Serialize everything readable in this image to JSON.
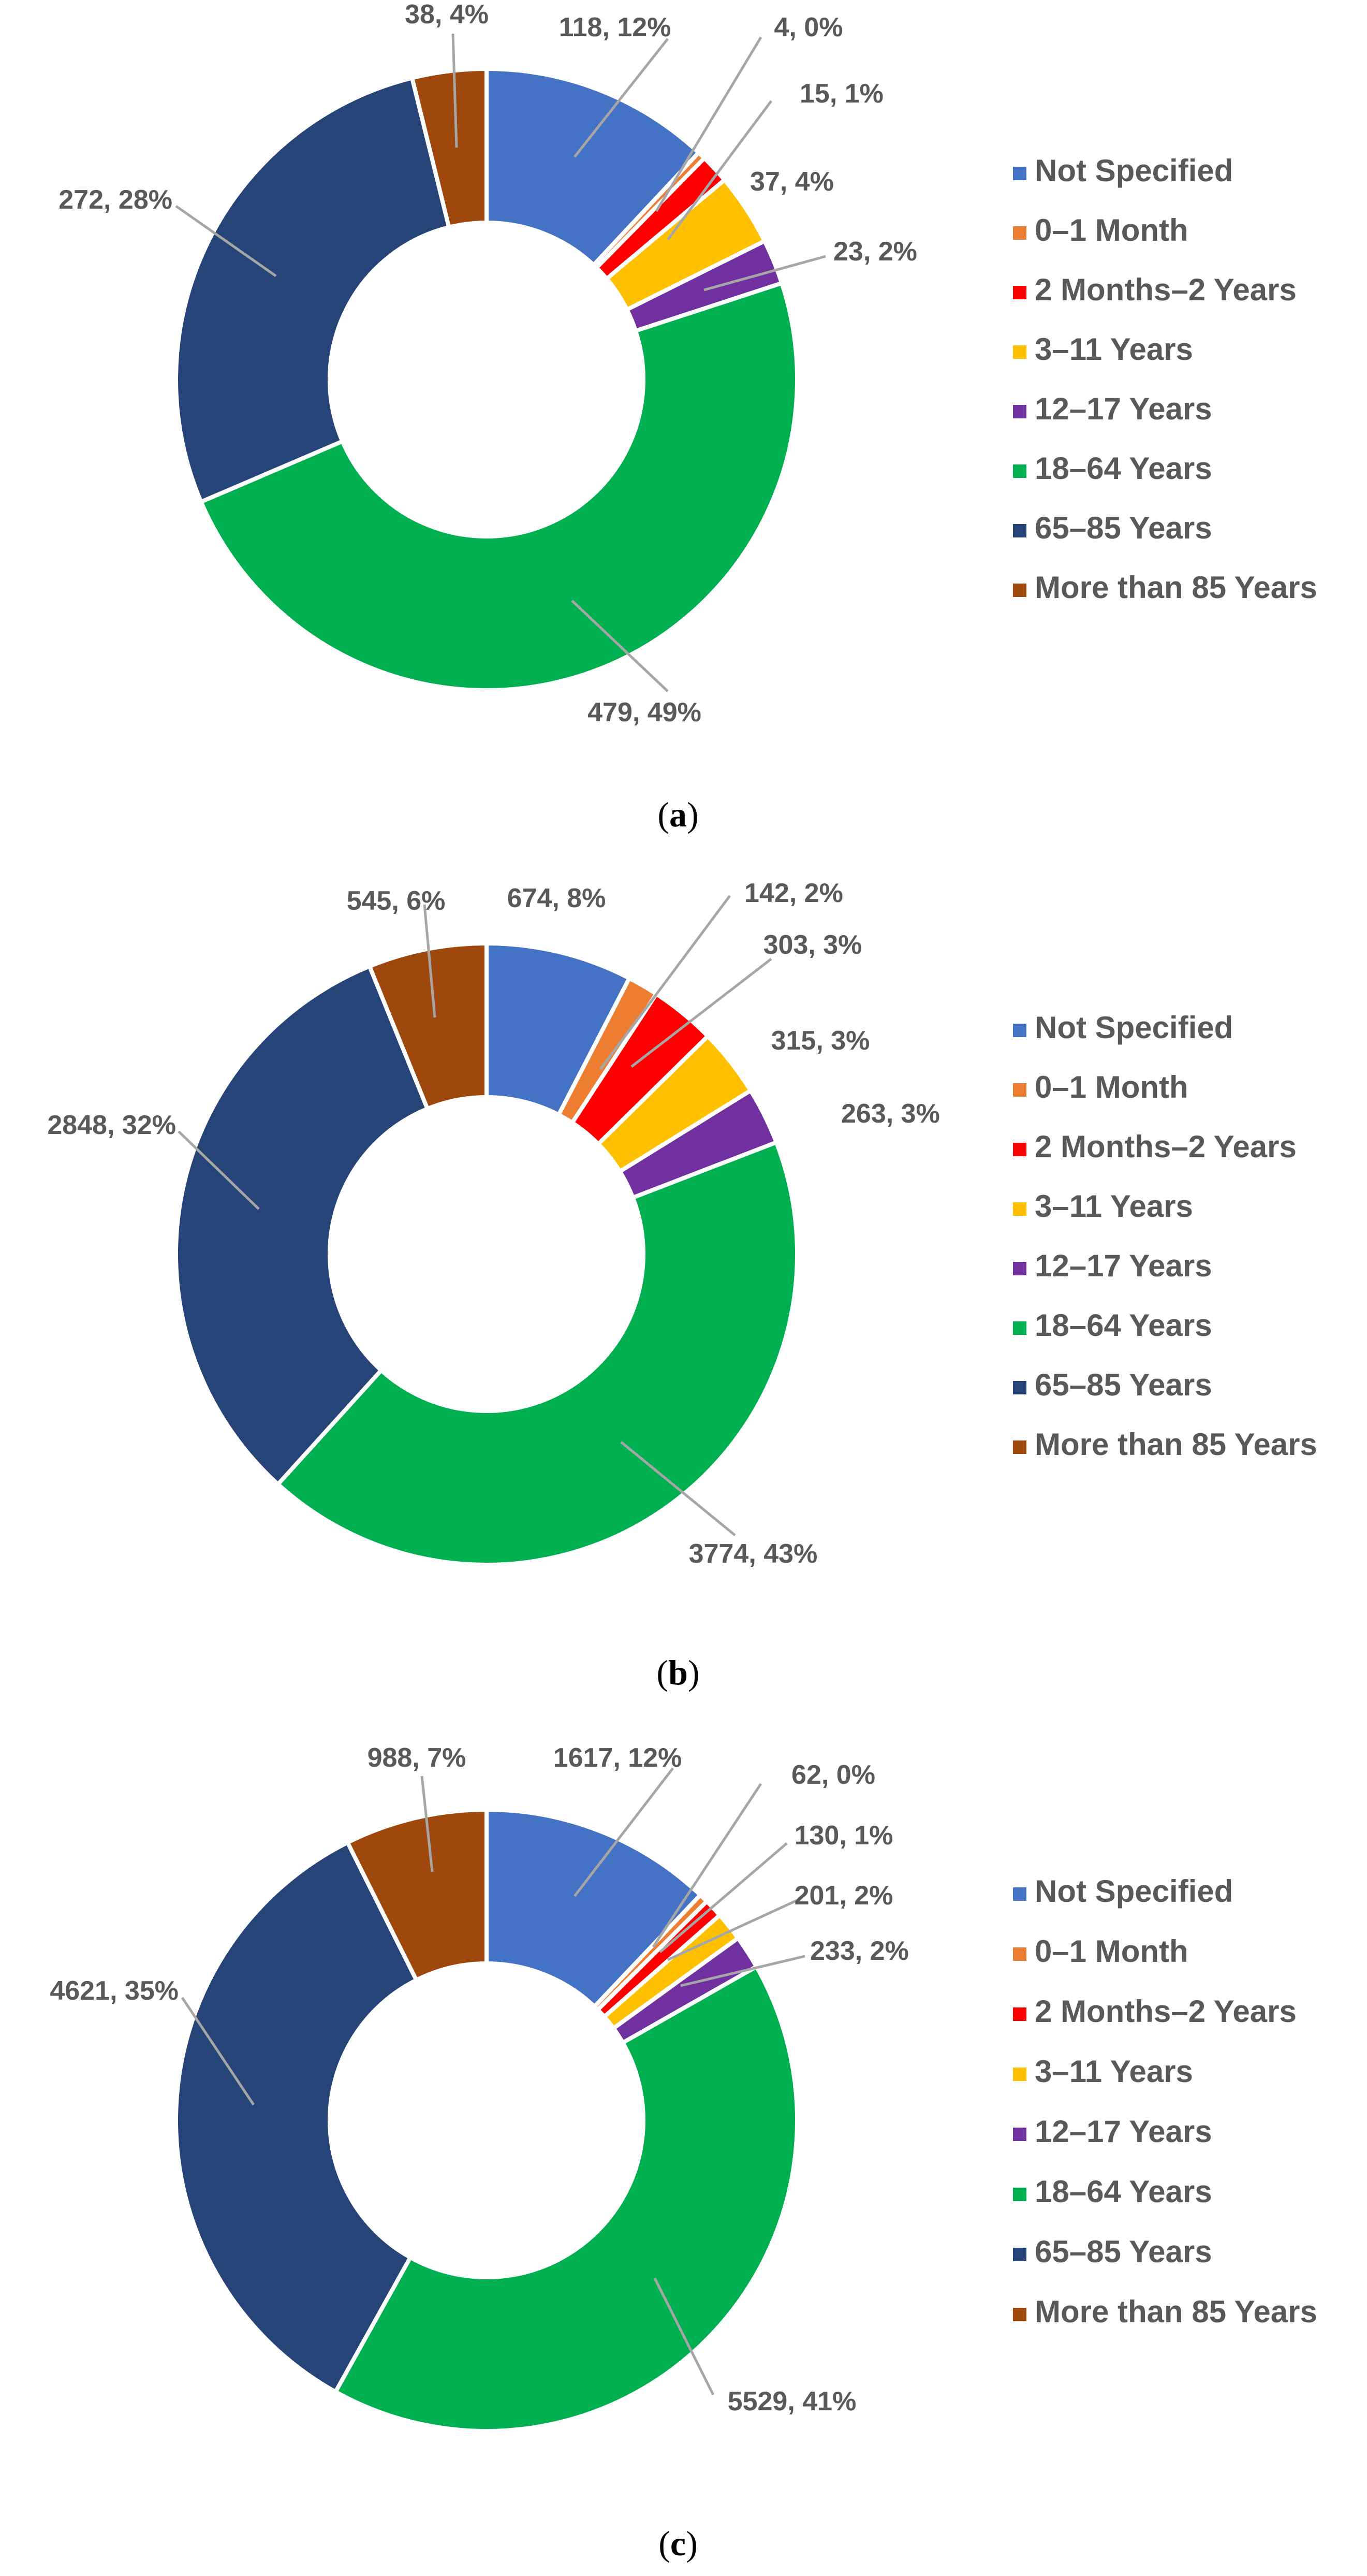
{
  "colors": {
    "Not Specified": "#4472C4",
    "0–1 Month": "#ED7D31",
    "2 Months–2 Years": "#FF0000",
    "3–11 Years": "#FFC000",
    "12–17 Years": "#7030A0",
    "18–64 Years": "#00B050",
    "65–85 Years": "#264478",
    "More than 85 Years": "#9E480E"
  },
  "chart_data": [
    {
      "type": "pie",
      "subtype": "donut",
      "caption": {
        "open": "(",
        "letter": "a",
        "close": ")"
      },
      "categories": [
        "Not Specified",
        "0–1 Month",
        "2 Months–2 Years",
        "3–11 Years",
        "12–17 Years",
        "18–64 Years",
        "65–85 Years",
        "More than 85 Years"
      ],
      "values": [
        118,
        4,
        15,
        37,
        23,
        479,
        272,
        38
      ],
      "labels": [
        "118, 12%",
        "4, 0%",
        "15, 1%",
        "37, 4%",
        "23, 2%",
        "479, 49%",
        "272, 28%",
        "38, 4%"
      ],
      "legend": "right"
    },
    {
      "type": "pie",
      "subtype": "donut",
      "caption": {
        "open": "(",
        "letter": "b",
        "close": ")"
      },
      "categories": [
        "Not Specified",
        "0–1 Month",
        "2 Months–2 Years",
        "3–11 Years",
        "12–17 Years",
        "18–64 Years",
        "65–85 Years",
        "More than 85 Years"
      ],
      "values": [
        674,
        142,
        303,
        315,
        263,
        3774,
        2848,
        545
      ],
      "labels": [
        "674, 8%",
        "142, 2%",
        "303, 3%",
        "315, 3%",
        "263, 3%",
        "3774, 43%",
        "2848, 32%",
        "545, 6%"
      ],
      "legend": "right"
    },
    {
      "type": "pie",
      "subtype": "donut",
      "caption": {
        "open": "(",
        "letter": "c",
        "close": ")"
      },
      "categories": [
        "Not Specified",
        "0–1 Month",
        "2 Months–2 Years",
        "3–11 Years",
        "12–17 Years",
        "18–64 Years",
        "65–85 Years",
        "More than 85 Years"
      ],
      "values": [
        1617,
        62,
        130,
        201,
        233,
        5529,
        4621,
        988
      ],
      "labels": [
        "1617, 12%",
        "62, 0%",
        "130, 1%",
        "201, 2%",
        "233, 2%",
        "5529, 41%",
        "4621, 35%",
        "988, 7%"
      ],
      "legend": "right"
    }
  ]
}
